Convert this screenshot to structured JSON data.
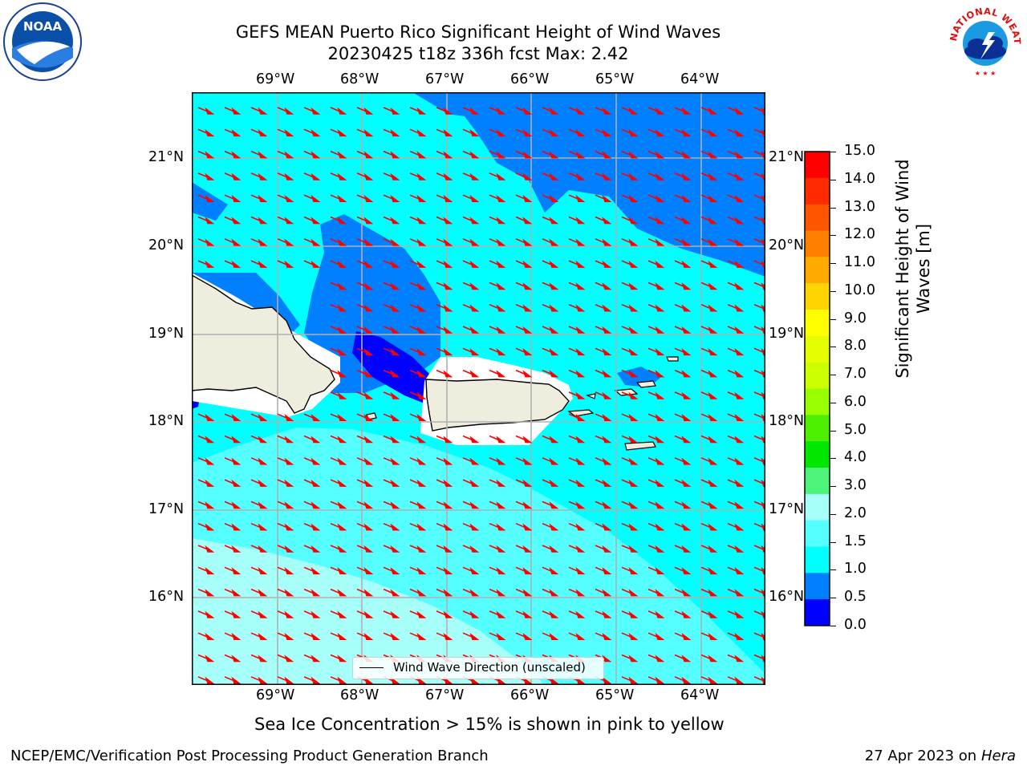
{
  "header": {
    "title_line1": "GEFS MEAN Puerto Rico Significant Height of Wind Waves",
    "title_line2": "20230425 t18z 336h fcst   Max: 2.42"
  },
  "logos": {
    "left": "NOAA",
    "right": "NATIONAL WEATHER SERVICE"
  },
  "map": {
    "lon_labels": [
      "69°W",
      "68°W",
      "67°W",
      "66°W",
      "65°W",
      "64°W"
    ],
    "lat_labels": [
      "21°N",
      "20°N",
      "19°N",
      "18°N",
      "17°N",
      "16°N"
    ],
    "legend_label": "Wind Wave Direction (unscaled)",
    "colors": {
      "land": "#efedde",
      "arrow": "#ff0000",
      "grid": "#b0b0b0"
    }
  },
  "colorbar": {
    "title": "Significant Height of Wind Waves [m]",
    "ticks": [
      "15.0",
      "14.0",
      "13.0",
      "12.0",
      "11.0",
      "10.0",
      "9.0",
      "8.0",
      "7.0",
      "6.0",
      "5.0",
      "4.0",
      "3.0",
      "2.0",
      "1.5",
      "1.0",
      "0.5",
      "0.0"
    ],
    "colors_top_to_bottom": [
      "#ff0000",
      "#ff2a00",
      "#ff5500",
      "#ff8000",
      "#ffaa00",
      "#ffd400",
      "#ffff00",
      "#e5ff00",
      "#ccff00",
      "#99ff00",
      "#4cf000",
      "#00e800",
      "#4cf57a",
      "#a6fff9",
      "#55ffff",
      "#00ffff",
      "#0080ff",
      "#0000ff"
    ]
  },
  "notes": {
    "sea_ice": "Sea Ice Concentration > 15% is shown in pink to yellow"
  },
  "footer": {
    "left": "NCEP/EMC/Verification Post Processing Product Generation Branch",
    "right_prefix": "27 Apr 2023 on ",
    "right_machine": "Hera"
  }
}
